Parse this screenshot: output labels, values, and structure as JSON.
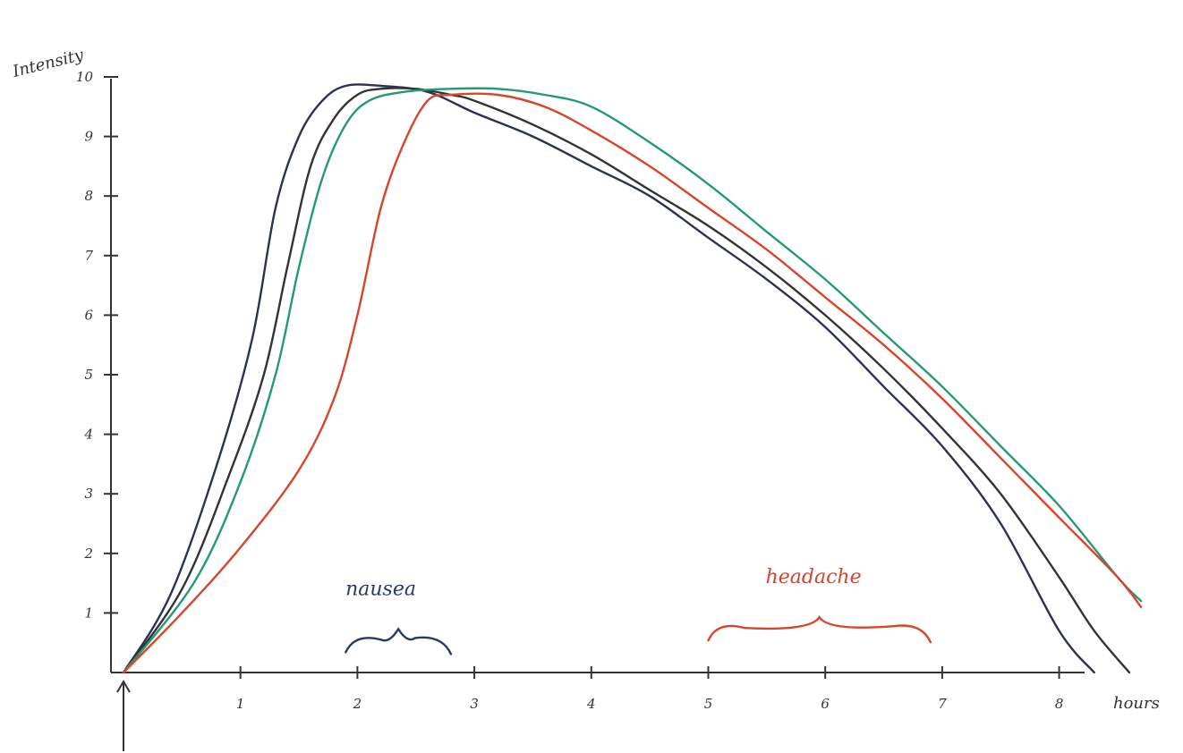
{
  "chart_data": {
    "type": "line",
    "title": "",
    "xlabel": "hours",
    "ylabel": "Intensity",
    "xlim": [
      0,
      8.7
    ],
    "ylim": [
      0,
      10
    ],
    "xticks": [
      "1",
      "2",
      "3",
      "4",
      "5",
      "6",
      "7",
      "8"
    ],
    "yticks": [
      "1",
      "2",
      "3",
      "4",
      "5",
      "6",
      "7",
      "8",
      "9",
      "10"
    ],
    "grid": false,
    "annotations": [
      {
        "text": "nausea",
        "x": 2.2,
        "y": 1.3,
        "color": "#2a3a66",
        "brace_x": [
          1.9,
          2.8
        ]
      },
      {
        "text": "headache",
        "x": 5.9,
        "y": 1.5,
        "color": "#d7452b",
        "brace_x": [
          5.0,
          6.9
        ]
      }
    ],
    "series": [
      {
        "color": "#2b3350",
        "x": [
          0,
          0.4,
          0.8,
          1.1,
          1.3,
          1.5,
          1.7,
          1.9,
          2.2,
          2.6,
          3.0,
          3.5,
          4.0,
          4.5,
          5.0,
          5.5,
          6.0,
          6.5,
          7.0,
          7.5,
          8.0,
          8.3
        ],
        "y": [
          0,
          1.3,
          3.5,
          5.6,
          7.8,
          9.0,
          9.6,
          9.85,
          9.85,
          9.75,
          9.4,
          9.0,
          8.5,
          8.0,
          7.3,
          6.6,
          5.8,
          4.8,
          3.8,
          2.5,
          0.7,
          0
        ]
      },
      {
        "color": "#333333",
        "x": [
          0,
          0.5,
          0.9,
          1.2,
          1.4,
          1.6,
          1.8,
          2.0,
          2.2,
          2.5,
          2.8,
          3.0,
          3.5,
          4.0,
          4.5,
          5.0,
          5.5,
          6.0,
          6.5,
          7.0,
          7.5,
          8.0,
          8.3,
          8.6
        ],
        "y": [
          0,
          1.4,
          3.3,
          5.0,
          6.8,
          8.5,
          9.3,
          9.7,
          9.8,
          9.8,
          9.7,
          9.6,
          9.2,
          8.7,
          8.1,
          7.5,
          6.8,
          6.0,
          5.1,
          4.1,
          3.0,
          1.6,
          0.7,
          0
        ]
      },
      {
        "color": "#249a72",
        "x": [
          0,
          0.6,
          1.0,
          1.3,
          1.5,
          1.7,
          1.9,
          2.1,
          2.4,
          2.8,
          3.2,
          3.6,
          4.0,
          4.5,
          5.0,
          5.5,
          6.0,
          6.5,
          7.0,
          7.5,
          8.0,
          8.5,
          8.7
        ],
        "y": [
          0,
          1.5,
          3.2,
          5.0,
          6.8,
          8.3,
          9.2,
          9.6,
          9.75,
          9.8,
          9.8,
          9.7,
          9.5,
          8.9,
          8.2,
          7.4,
          6.6,
          5.7,
          4.8,
          3.8,
          2.8,
          1.6,
          1.2
        ]
      },
      {
        "color": "#d7452b",
        "x": [
          0,
          0.5,
          1.0,
          1.5,
          1.8,
          2.0,
          2.2,
          2.4,
          2.6,
          2.8,
          3.2,
          3.6,
          4.0,
          4.5,
          5.0,
          5.5,
          6.0,
          6.5,
          7.0,
          7.5,
          8.0,
          8.5,
          8.7
        ],
        "y": [
          0,
          1.0,
          2.1,
          3.4,
          4.6,
          6.0,
          7.8,
          8.9,
          9.6,
          9.7,
          9.7,
          9.5,
          9.1,
          8.5,
          7.8,
          7.1,
          6.3,
          5.5,
          4.6,
          3.6,
          2.6,
          1.6,
          1.1
        ]
      }
    ]
  }
}
